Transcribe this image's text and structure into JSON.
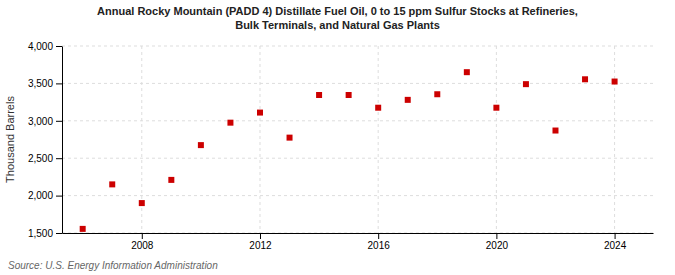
{
  "chart_data": {
    "type": "scatter",
    "title": "Annual Rocky Mountain (PADD 4) Distillate Fuel Oil, 0 to 15 ppm Sulfur Stocks at Refineries,\nBulk Terminals, and Natural Gas Plants",
    "ylabel": "Thousand Barrels",
    "source": "Source: U.S. Energy Information Administration",
    "x": [
      2006,
      2007,
      2008,
      2009,
      2010,
      2011,
      2012,
      2013,
      2014,
      2015,
      2016,
      2017,
      2018,
      2019,
      2020,
      2021,
      2022,
      2023,
      2024
    ],
    "values": [
      1555,
      2150,
      1900,
      2210,
      2675,
      2975,
      3110,
      2775,
      3345,
      3345,
      3175,
      3280,
      3355,
      3650,
      3175,
      3490,
      2870,
      3555,
      3525
    ],
    "color": "#cc0000",
    "marker": "square",
    "xlim": [
      2005.3,
      2025.3
    ],
    "xticks": [
      2008,
      2012,
      2016,
      2020,
      2024
    ],
    "ylim": [
      1500,
      4000
    ],
    "yticks": [
      {
        "value": 1500,
        "label": "1,500"
      },
      {
        "value": 2000,
        "label": "2,000"
      },
      {
        "value": 2500,
        "label": "2,500"
      },
      {
        "value": 3000,
        "label": "3,000"
      },
      {
        "value": 3500,
        "label": "3,500"
      },
      {
        "value": 4000,
        "label": "4,000"
      }
    ],
    "grid": true
  }
}
